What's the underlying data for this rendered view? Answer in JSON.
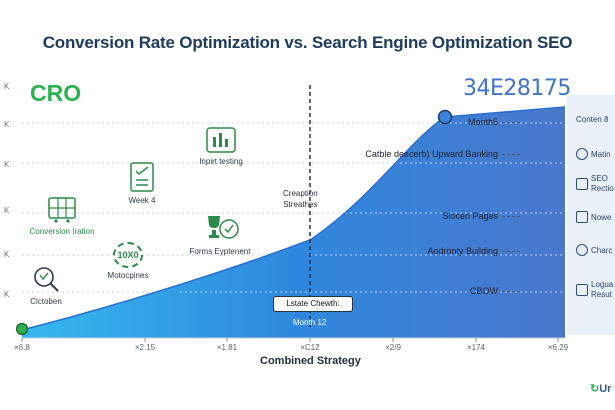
{
  "title": "Conversion Rate Optimization vs. Search Engine Optimization SEO",
  "cro": {
    "heading": "CRO",
    "items": [
      {
        "label": "Inpirt testing",
        "icon": "bar-chart-icon"
      },
      {
        "label": "Week 4",
        "icon": "checklist-icon"
      },
      {
        "label": "Conversion Iration",
        "icon": "cart-icon"
      },
      {
        "label": "Forms Eyptenent",
        "icon": "trophy-icon"
      },
      {
        "label": "Motocpines",
        "icon": "gear-badge-icon",
        "badge": "10X0"
      },
      {
        "label": "Clctoben",
        "icon": "magnifier-icon"
      }
    ]
  },
  "seo": {
    "number": "34E28175",
    "rows": [
      {
        "label": "Month5"
      },
      {
        "label": "Catble deecerb) Upward Banking"
      },
      {
        "label": "Slocen Pages"
      },
      {
        "label": "Aodronty Building"
      },
      {
        "label": "CBOW"
      }
    ]
  },
  "side_items": [
    {
      "label": "Conten 8",
      "icon": "doc-icon"
    },
    {
      "label": "Matin",
      "icon": "gauge-icon"
    },
    {
      "label": "SEO Rectio",
      "icon": "doc-icon"
    },
    {
      "label": "Nowe",
      "icon": "link-icon"
    },
    {
      "label": "Charc",
      "icon": "pin-icon"
    },
    {
      "label": "Logua Resut",
      "icon": "check-icon"
    }
  ],
  "y_ticks": [
    "K",
    "K",
    "K",
    "K",
    "K",
    "K"
  ],
  "x_ticks": [
    "×6.8",
    "×2.15",
    "×1.81",
    "×C12",
    "×2/9",
    "×174",
    "×6.29"
  ],
  "x_label": "Combined Strategy",
  "annotation_top": "Creaption\nStreathes",
  "callout": "Lstate Chewth:",
  "callout_sub": "Month 12",
  "logo": "Ur"
}
